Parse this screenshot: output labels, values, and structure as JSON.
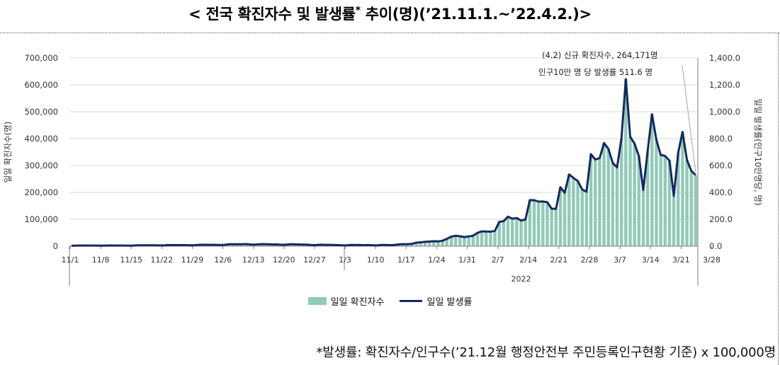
{
  "title": {
    "prefix": "< 전국 확진자수 및 발생률",
    "star": "*",
    "suffix": " 추이(명)(’21.11.1.~’22.4.2.)>"
  },
  "footnote": "*발생률: 확진자수/인구수(’21.12월 행정안전부 주민등록인구현황 기준) x 100,000명",
  "chart_data": {
    "type": "bar+line",
    "left_axis": {
      "label": "일일 확진자수(명)",
      "ylim": [
        0,
        700000
      ],
      "ticks": [
        "0",
        "100,000",
        "200,000",
        "300,000",
        "400,000",
        "500,000",
        "600,000",
        "700,000"
      ]
    },
    "right_axis": {
      "label": "일일 발생률(인구10만명당, 명)",
      "ylim": [
        0,
        1400
      ],
      "ticks": [
        "0.0",
        "200.0",
        "400.0",
        "600.0",
        "800.0",
        "1,000.0",
        "1,200.0",
        "1,400.0"
      ]
    },
    "x_ticks": [
      "11/1",
      "11/8",
      "11/15",
      "11/22",
      "11/29",
      "12/6",
      "12/13",
      "12/20",
      "12/27",
      "1/3",
      "1/10",
      "1/17",
      "1/24",
      "1/31",
      "2/7",
      "2/14",
      "2/21",
      "2/28",
      "3/7",
      "3/14",
      "3/21",
      "3/28"
    ],
    "year_label": "2022",
    "annotation": [
      "(4.2) 신규 확진자수, 264,171명",
      "인구10만 명 당 발생률 511.6 명"
    ],
    "legend": [
      {
        "label": "일일 확진자수",
        "color": "#92c9b7"
      },
      {
        "label": "일일 발생률",
        "color": "#14295e"
      }
    ],
    "series_name_bar": "일일 확진자수",
    "series_name_line": "일일 발생률",
    "grid": true,
    "values": [
      1686,
      2224,
      2667,
      2482,
      2344,
      2248,
      2224,
      1758,
      2425,
      2520,
      2368,
      2324,
      2419,
      2006,
      1817,
      3187,
      3292,
      3034,
      3206,
      3120,
      2827,
      2699,
      4115,
      3938,
      3901,
      3926,
      4068,
      3309,
      3032,
      5123,
      5265,
      5352,
      5128,
      5126,
      4325,
      4954,
      7175,
      7102,
      7022,
      6977,
      7850,
      6236,
      5817,
      7456,
      7622,
      7435,
      6236,
      6683,
      5318,
      5202,
      7314,
      6919,
      6233,
      5842,
      5413,
      4207,
      3865,
      5409,
      5037,
      4875,
      4415,
      3833,
      3127,
      3024,
      4442,
      4126,
      4416,
      3713,
      4126,
      3376,
      3005,
      4567,
      4385,
      4071,
      4542,
      6602,
      7625,
      7315,
      8570,
      13007,
      14517,
      16094,
      17067,
      18302,
      17532,
      20262,
      27435,
      35281,
      38686,
      36714,
      33989,
      36334,
      38718,
      49553,
      54937,
      54534,
      53918,
      57149,
      90416,
      93107,
      109811,
      102148,
      104822,
      95360,
      99565,
      171439,
      170998,
      165813,
      166207,
      163553,
      139535,
      138981,
      219245,
      198808,
      266853,
      254311,
      242195,
      210712,
      202706,
      342434,
      322399,
      327538,
      383664,
      362303,
      309787,
      292988,
      400741,
      621328,
      407017,
      381401,
      334650,
      209151,
      353891,
      490847,
      395619,
      339503,
      335579,
      318130,
      187208,
      347554,
      424641,
      320743,
      280265,
      264171
    ]
  }
}
